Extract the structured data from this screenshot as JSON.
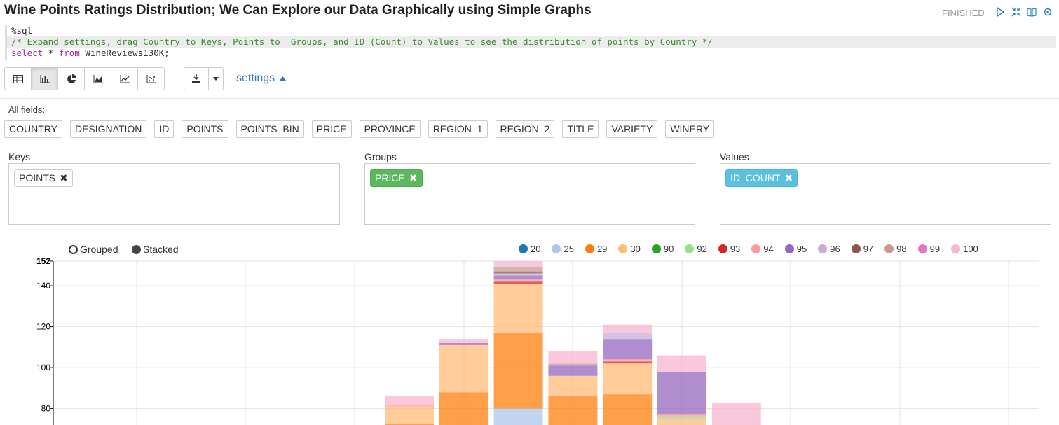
{
  "title": "Wine Points Ratings Distribution; We Can Explore our Data Graphically using Simple Graphs",
  "status": "FINISHED",
  "header_icons": [
    "run-icon",
    "collapse-icon",
    "book-icon",
    "gear-icon"
  ],
  "editor": {
    "line1": "%sql",
    "line2": "/* Expand settings, drag Country to Keys, Points to  Groups, and ID (Count) to Values to see the distribution of points by Country */",
    "line3_kw1": "select",
    "line3_mid": " * ",
    "line3_kw2": "from",
    "line3_end": " WineReviews130K;"
  },
  "toolbar": {
    "buttons": [
      "table-icon",
      "bar-chart-icon",
      "pie-chart-icon",
      "area-chart-icon",
      "line-chart-icon",
      "scatter-chart-icon"
    ],
    "active": "bar-chart-icon",
    "download": "download-icon",
    "settings_label": "settings"
  },
  "all_fields_label": "All fields:",
  "fields": [
    "COUNTRY",
    "DESIGNATION",
    "ID",
    "POINTS",
    "POINTS_BIN",
    "PRICE",
    "PROVINCE",
    "REGION_1",
    "REGION_2",
    "TITLE",
    "VARIETY",
    "WINERY"
  ],
  "keys": {
    "label": "Keys",
    "chip": "POINTS"
  },
  "groups": {
    "label": "Groups",
    "chip": "PRICE"
  },
  "values": {
    "label": "Values",
    "chip": "ID  COUNT"
  },
  "radios": {
    "grouped": "Grouped",
    "stacked": "Stacked",
    "selected": "stacked"
  },
  "chart_data": {
    "type": "bar",
    "stacked": true,
    "y_ticks": [
      "80",
      "100",
      "120",
      "140",
      "152"
    ],
    "ylim": [
      72,
      152
    ],
    "series": [
      {
        "name": "20",
        "color": "#1f77b4"
      },
      {
        "name": "25",
        "color": "#aec7e8"
      },
      {
        "name": "29",
        "color": "#ff7f0e"
      },
      {
        "name": "30",
        "color": "#ffbb78"
      },
      {
        "name": "90",
        "color": "#2ca02c"
      },
      {
        "name": "92",
        "color": "#98df8a"
      },
      {
        "name": "93",
        "color": "#d62728"
      },
      {
        "name": "94",
        "color": "#ff9896"
      },
      {
        "name": "95",
        "color": "#9467bd"
      },
      {
        "name": "96",
        "color": "#c5b0d5"
      },
      {
        "name": "97",
        "color": "#8c564b"
      },
      {
        "name": "98",
        "color": "#c49c94"
      },
      {
        "name": "99",
        "color": "#e377c2"
      },
      {
        "name": "100",
        "color": "#f7b6d2"
      }
    ],
    "bars": [
      {
        "segments": [
          {
            "s": "29",
            "from": 72,
            "to": 72.5
          },
          {
            "s": "30",
            "from": 72.5,
            "to": 81
          },
          {
            "s": "94",
            "from": 81,
            "to": 82
          },
          {
            "s": "100",
            "from": 82,
            "to": 86
          }
        ]
      },
      {
        "segments": [
          {
            "s": "29",
            "from": 72,
            "to": 88
          },
          {
            "s": "30",
            "from": 88,
            "to": 111
          },
          {
            "s": "95",
            "from": 111,
            "to": 112
          },
          {
            "s": "100",
            "from": 112,
            "to": 114
          }
        ]
      },
      {
        "segments": [
          {
            "s": "25",
            "from": 72,
            "to": 80
          },
          {
            "s": "29",
            "from": 80,
            "to": 117
          },
          {
            "s": "30",
            "from": 117,
            "to": 141
          },
          {
            "s": "93",
            "from": 141,
            "to": 142
          },
          {
            "s": "94",
            "from": 142,
            "to": 143
          },
          {
            "s": "95",
            "from": 143,
            "to": 145
          },
          {
            "s": "96",
            "from": 145,
            "to": 146
          },
          {
            "s": "97",
            "from": 146,
            "to": 147
          },
          {
            "s": "98",
            "from": 147,
            "to": 149
          },
          {
            "s": "100",
            "from": 149,
            "to": 152
          }
        ]
      },
      {
        "segments": [
          {
            "s": "29",
            "from": 72,
            "to": 86
          },
          {
            "s": "30",
            "from": 86,
            "to": 96
          },
          {
            "s": "95",
            "from": 96,
            "to": 101
          },
          {
            "s": "98",
            "from": 101,
            "to": 102
          },
          {
            "s": "100",
            "from": 102,
            "to": 108
          }
        ]
      },
      {
        "segments": [
          {
            "s": "29",
            "from": 72,
            "to": 87
          },
          {
            "s": "30",
            "from": 87,
            "to": 102
          },
          {
            "s": "93",
            "from": 102,
            "to": 103
          },
          {
            "s": "94",
            "from": 103,
            "to": 104
          },
          {
            "s": "95",
            "from": 104,
            "to": 114
          },
          {
            "s": "96",
            "from": 114,
            "to": 117
          },
          {
            "s": "100",
            "from": 117,
            "to": 121
          }
        ]
      },
      {
        "segments": [
          {
            "s": "30",
            "from": 72,
            "to": 75
          },
          {
            "s": "92",
            "from": 75,
            "to": 76
          },
          {
            "s": "94",
            "from": 76,
            "to": 77
          },
          {
            "s": "95",
            "from": 77,
            "to": 98
          },
          {
            "s": "100",
            "from": 98,
            "to": 106
          }
        ]
      },
      {
        "segments": [
          {
            "s": "100",
            "from": 72,
            "to": 83
          }
        ]
      }
    ]
  }
}
